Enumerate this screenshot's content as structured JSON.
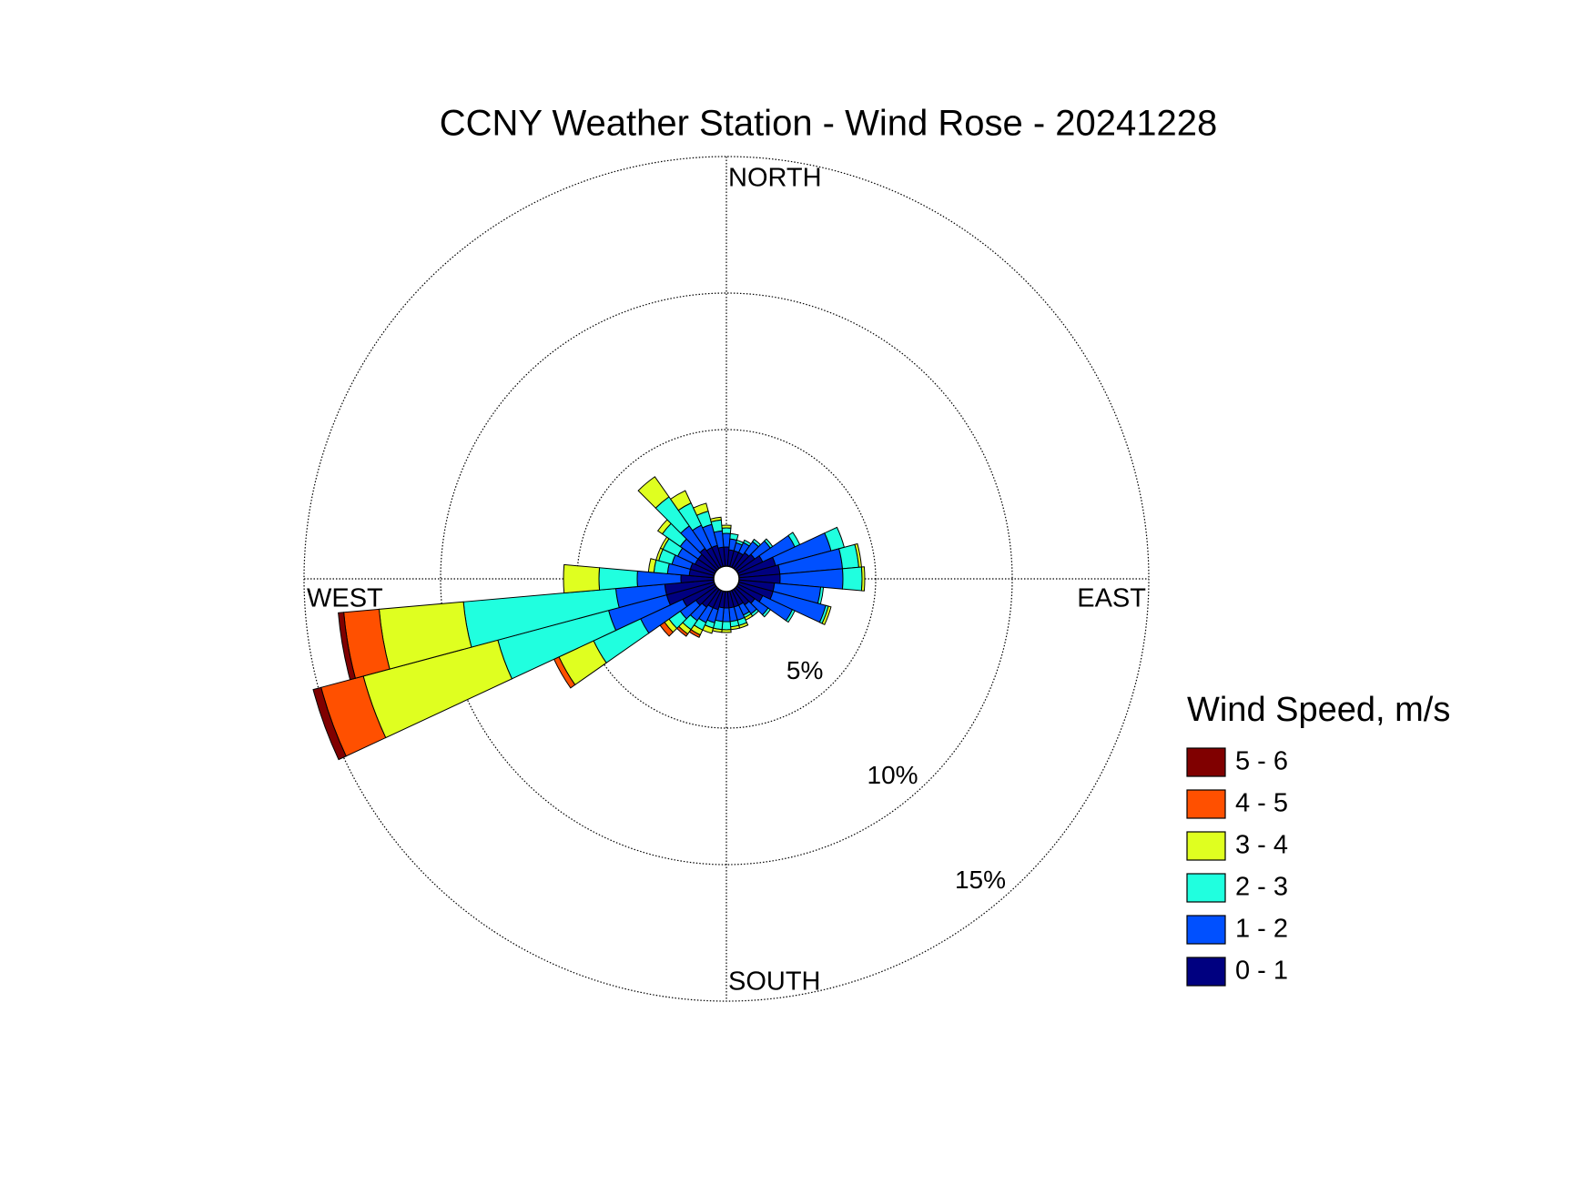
{
  "chart_data": {
    "type": "windrose",
    "title": "CCNY Weather Station - Wind Rose - 20241228",
    "direction_labels": {
      "north": "NORTH",
      "east": "EAST",
      "south": "SOUTH",
      "west": "WEST"
    },
    "legend_title": "Wind Speed, m/s",
    "x": [
      0,
      10,
      20,
      30,
      40,
      50,
      60,
      70,
      80,
      90,
      100,
      110,
      120,
      130,
      140,
      150,
      160,
      170,
      180,
      190,
      200,
      210,
      220,
      230,
      240,
      250,
      260,
      270,
      280,
      290,
      300,
      310,
      320,
      330,
      340,
      350
    ],
    "series": [
      {
        "name": "0 - 1",
        "color": "#000080",
        "values": [
          0.7,
          0.6,
          0.6,
          0.6,
          0.7,
          0.8,
          1.0,
          1.4,
          1.5,
          1.5,
          1.3,
          1.3,
          1.0,
          0.8,
          0.7,
          0.6,
          0.6,
          0.6,
          0.6,
          0.6,
          0.7,
          0.7,
          0.8,
          0.9,
          1.3,
          1.8,
          1.8,
          1.2,
          0.9,
          0.9,
          0.8,
          0.8,
          0.9,
          0.8,
          0.8,
          0.7
        ]
      },
      {
        "name": "1 - 2",
        "color": "#0050ff",
        "values": [
          0.5,
          0.4,
          0.3,
          0.4,
          0.5,
          0.7,
          1.3,
          2.1,
          2.3,
          2.3,
          1.7,
          2.0,
          1.2,
          0.6,
          0.4,
          0.4,
          0.5,
          0.5,
          0.5,
          0.5,
          0.5,
          0.6,
          0.6,
          0.7,
          1.7,
          2.2,
          1.8,
          1.6,
          0.8,
          0.7,
          0.7,
          0.8,
          1.0,
          0.9,
          0.8,
          0.6
        ]
      },
      {
        "name": "2 - 3",
        "color": "#20ffdf",
        "values": [
          0.2,
          0.2,
          0.1,
          0.1,
          0.1,
          0.1,
          0.2,
          0.5,
          0.6,
          0.7,
          0.1,
          0.1,
          0.1,
          0.1,
          0.1,
          0.1,
          0.2,
          0.2,
          0.3,
          0.3,
          0.2,
          0.3,
          0.4,
          0.5,
          1.9,
          4.2,
          5.6,
          1.4,
          0.5,
          0.5,
          0.6,
          0.8,
          1.3,
          0.9,
          0.5,
          0.4
        ]
      },
      {
        "name": "3 - 4",
        "color": "#dfff20",
        "values": [
          0.1,
          0,
          0,
          0,
          0,
          0,
          0,
          0,
          0.1,
          0.1,
          0,
          0.1,
          0,
          0,
          0,
          0.1,
          0.1,
          0.1,
          0.1,
          0.1,
          0.2,
          0.2,
          0.2,
          0.2,
          1.4,
          5.1,
          3.1,
          1.3,
          0.2,
          0.1,
          0.1,
          0.2,
          0.9,
          0.5,
          0.3,
          0.1
        ]
      },
      {
        "name": "4 - 5",
        "color": "#ff5000",
        "values": [
          0,
          0,
          0,
          0,
          0,
          0,
          0,
          0,
          0,
          0,
          0,
          0,
          0,
          0,
          0,
          0,
          0,
          0,
          0,
          0,
          0,
          0.1,
          0.1,
          0.2,
          0.2,
          1.6,
          1.3,
          0,
          0,
          0,
          0,
          0,
          0,
          0,
          0,
          0
        ]
      },
      {
        "name": "5 - 6",
        "color": "#800000",
        "values": [
          0,
          0,
          0,
          0,
          0,
          0,
          0,
          0,
          0,
          0,
          0,
          0,
          0,
          0,
          0,
          0,
          0,
          0,
          0,
          0,
          0,
          0,
          0,
          0,
          0,
          0.3,
          0.2,
          0,
          0,
          0,
          0,
          0,
          0,
          0,
          0,
          0
        ]
      }
    ],
    "rlim": [
      0,
      15
    ],
    "rticks": [
      {
        "value": 5,
        "label": "5%"
      },
      {
        "value": 10,
        "label": "10%"
      },
      {
        "value": 15,
        "label": "15%"
      }
    ],
    "grid": true
  }
}
